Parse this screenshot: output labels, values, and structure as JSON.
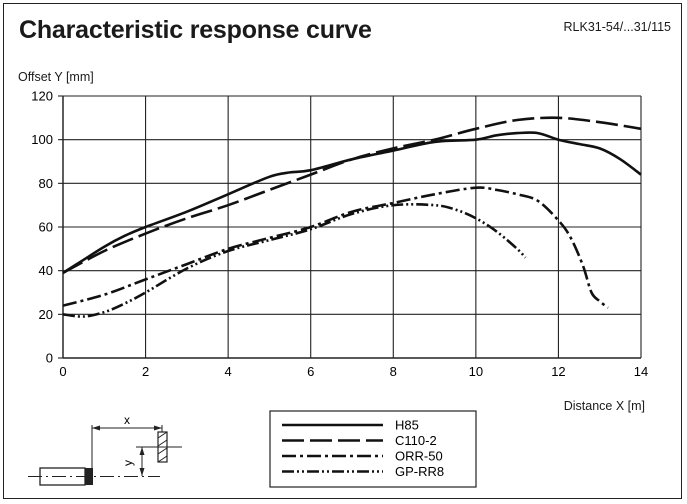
{
  "header": {
    "title": "Characteristic response curve",
    "product_code": "RLK31-54/...31/115"
  },
  "chart_data": {
    "type": "line",
    "title": "Characteristic response curve",
    "xlabel": "Distance X [m]",
    "ylabel": "Offset Y [mm]",
    "xlim": [
      0,
      14
    ],
    "ylim": [
      0,
      120
    ],
    "xticks": [
      "0",
      "2",
      "4",
      "6",
      "8",
      "10",
      "12",
      "14"
    ],
    "yticks": [
      "0",
      "20",
      "40",
      "60",
      "80",
      "100",
      "120"
    ],
    "grid": true,
    "legend_position": "bottom-center",
    "series": [
      {
        "name": "H85",
        "style": "solid",
        "x": [
          0,
          0.5,
          1,
          1.5,
          2,
          3,
          4,
          5,
          5.5,
          6,
          7,
          8,
          9,
          10,
          10.5,
          11,
          11.5,
          12,
          12.5,
          13,
          13.5,
          14
        ],
        "y": [
          39,
          45,
          51,
          56,
          60,
          67,
          75,
          83,
          85,
          86,
          91,
          95,
          99,
          100,
          102,
          103,
          103,
          100,
          98,
          96,
          91,
          84
        ]
      },
      {
        "name": "C110-2",
        "style": "longdash",
        "x": [
          0,
          1,
          2,
          3,
          4,
          5,
          6,
          7,
          8,
          9,
          10,
          11,
          12,
          13,
          14
        ],
        "y": [
          39,
          49,
          57,
          64,
          70,
          77,
          84,
          91,
          96,
          100,
          105,
          109,
          110,
          108,
          105
        ]
      },
      {
        "name": "ORR-50",
        "style": "dashdot",
        "x": [
          0,
          1,
          2,
          3,
          4,
          5,
          6,
          7,
          8,
          9,
          10,
          10.5,
          11,
          11.5,
          12,
          12.3,
          12.6,
          12.8,
          13,
          13.2
        ],
        "y": [
          24,
          29,
          36,
          43,
          50,
          55,
          60,
          67,
          71,
          75,
          78,
          77,
          75,
          72,
          63,
          55,
          42,
          30,
          26,
          23
        ]
      },
      {
        "name": "GP-RR8",
        "style": "dashdotdot",
        "x": [
          0,
          0.5,
          1,
          1.5,
          2,
          3,
          4,
          5,
          6,
          7,
          8,
          9,
          9.5,
          10,
          10.5,
          11,
          11.2
        ],
        "y": [
          20,
          19,
          21,
          25,
          30,
          41,
          49,
          54,
          59,
          66,
          70,
          70,
          68,
          64,
          58,
          50,
          46
        ]
      }
    ],
    "diagram_labels": {
      "x": "x",
      "y": "y"
    }
  }
}
